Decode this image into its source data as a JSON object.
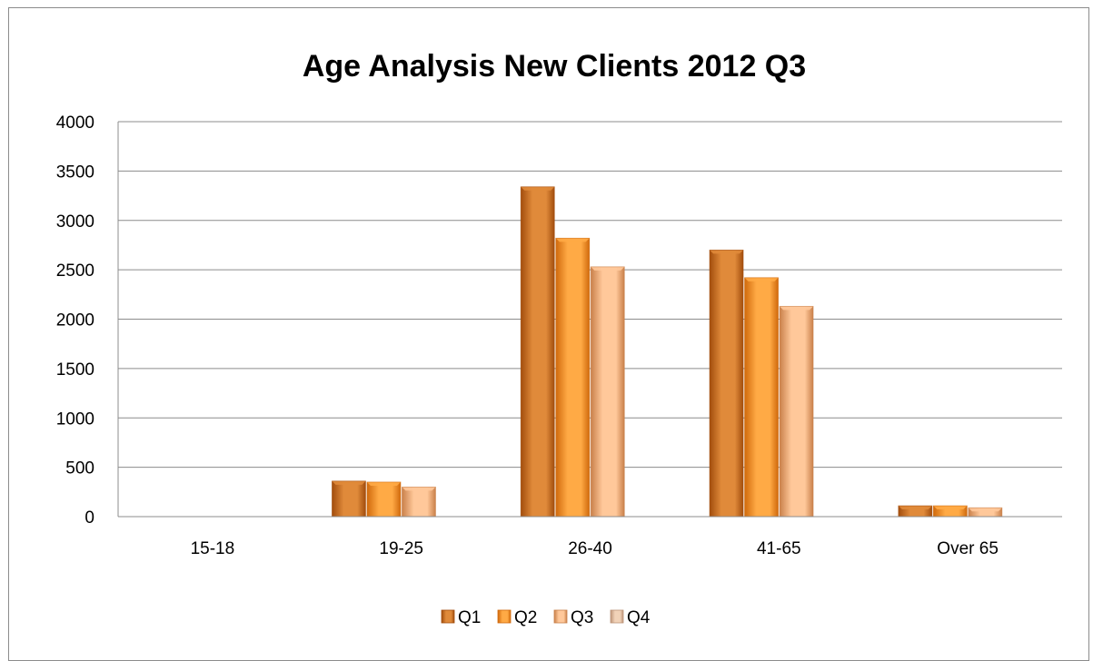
{
  "chart_data": {
    "type": "bar",
    "title": "Age Analysis New Clients 2012 Q3",
    "xlabel": "",
    "ylabel": "",
    "categories": [
      "15-18",
      "19-25",
      "26-40",
      "41-65",
      "Over 65"
    ],
    "series": [
      {
        "name": "Q1",
        "values": [
          0,
          360,
          3340,
          2700,
          110
        ]
      },
      {
        "name": "Q2",
        "values": [
          0,
          350,
          2820,
          2420,
          110
        ]
      },
      {
        "name": "Q3",
        "values": [
          0,
          300,
          2530,
          2130,
          90
        ]
      },
      {
        "name": "Q4",
        "values": [
          0,
          0,
          0,
          0,
          0
        ]
      }
    ],
    "ylim": [
      0,
      4000
    ],
    "yticks": [
      0,
      500,
      1000,
      1500,
      2000,
      2500,
      3000,
      3500,
      4000
    ],
    "grid": true,
    "legend_position": "bottom",
    "colors": {
      "Q1": {
        "light": "#e08a3a",
        "dark": "#a24d0d"
      },
      "Q2": {
        "light": "#ffaa45",
        "dark": "#d0690c"
      },
      "Q3": {
        "light": "#ffc89a",
        "dark": "#c9804a"
      },
      "Q4": {
        "light": "#f1d2b8",
        "dark": "#bd9479"
      }
    }
  }
}
